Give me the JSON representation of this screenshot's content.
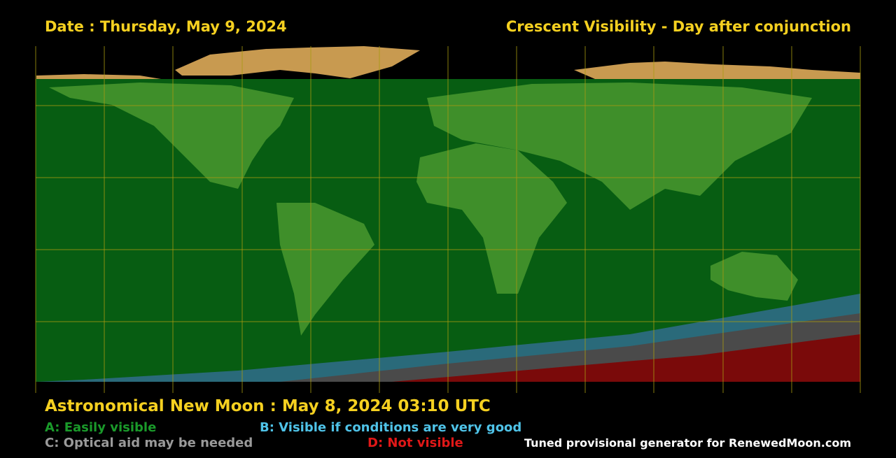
{
  "header": {
    "date": "Date : Thursday, May 9, 2024",
    "title": "Crescent Visibility - Day after conjunction"
  },
  "footer": {
    "new_moon": "Astronomical New Moon : May 8, 2024 03:10 UTC",
    "legend": [
      {
        "label": "A: Easily visible",
        "color": "#1a9a2a"
      },
      {
        "label": "B: Visible if conditions are very good",
        "color": "#4fc3e8"
      },
      {
        "label": "C: Optical aid may be needed",
        "color": "#9a9a9a"
      },
      {
        "label": "D: Not visible",
        "color": "#e01818"
      }
    ],
    "credit": "Tuned provisional generator for RenewedMoon.com"
  }
}
